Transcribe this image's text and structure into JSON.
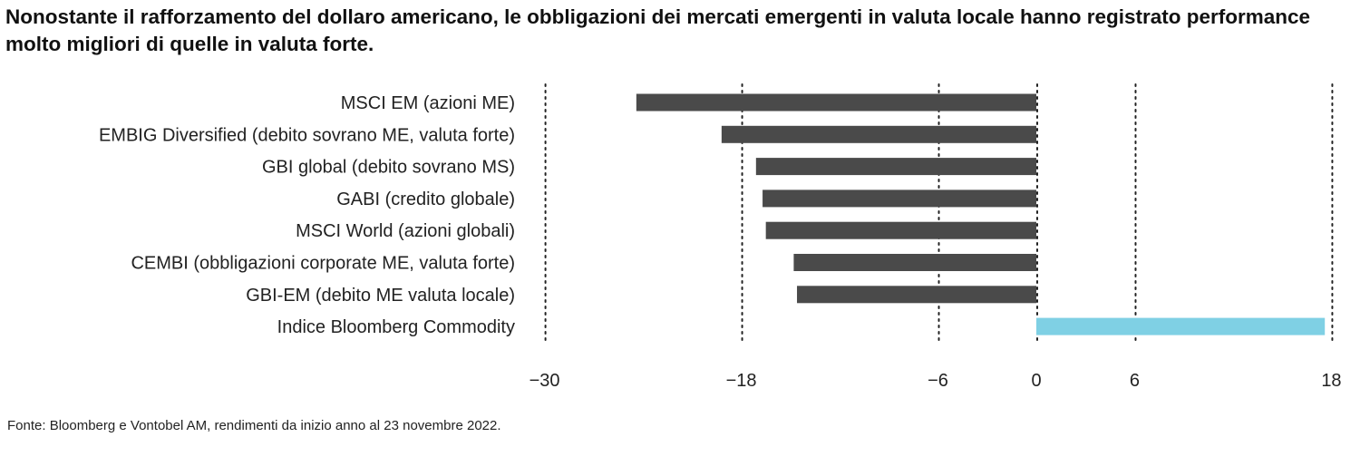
{
  "title": "Nonostante il rafforzamento del dollaro americano, le obbligazioni dei mercati emergenti in valuta locale hanno registrato performance molto migliori di quelle in valuta forte.",
  "source": "Fonte: Bloomberg e Vontobel AM, rendimenti da inizio anno al 23 novembre 2022.",
  "colors": {
    "negative_bar": "#4a4a4a",
    "positive_bar": "#7fd0e4",
    "grid": "#222222"
  },
  "chart_data": {
    "type": "bar",
    "orientation": "horizontal",
    "categories": [
      "MSCI EM (azioni ME)",
      "EMBIG Diversified (debito sovrano ME, valuta forte)",
      "GBI global (debito sovrano MS)",
      "GABI (credito globale)",
      "MSCI World (azioni globali)",
      "CEMBI (obbligazioni corporate ME, valuta forte)",
      "GBI-EM (debito ME valuta locale)",
      "Indice Bloomberg Commodity"
    ],
    "values": [
      -24.4,
      -19.2,
      -17.1,
      -16.7,
      -16.5,
      -14.8,
      -14.6,
      17.6
    ],
    "xlim": [
      -30,
      18
    ],
    "tick_labels": [
      "−30",
      "−18",
      "−6",
      "0",
      "6",
      "18"
    ],
    "grid": "vertical dotted lines at ticks",
    "legend": "none"
  }
}
